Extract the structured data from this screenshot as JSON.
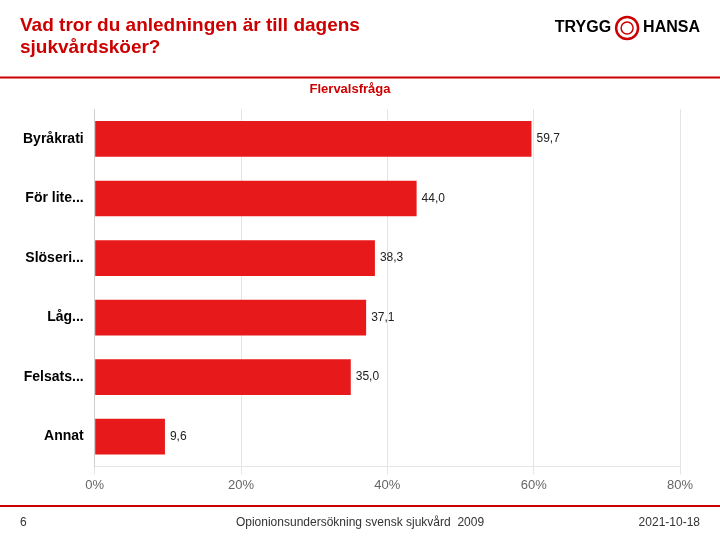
{
  "chart_data": {
    "type": "bar",
    "orientation": "horizontal",
    "title": [
      "Vad tror du anledningen är till dagens",
      "sjukvårdsköer?"
    ],
    "subtitle": "Flervalsfråga",
    "annotations": [
      "TRYGG",
      "HANSA",
      "6",
      "Opionionsundersökning svensk sjukvård  2009",
      "2021-10-18"
    ],
    "categories": [
      "Annat",
      "Felsats...",
      "Låg...",
      "Slöseri...",
      "För lite...",
      "Byråkrati"
    ],
    "values": [
      9.6,
      35.0,
      37.1,
      38.3,
      44.0,
      59.7
    ],
    "value_labels": [
      "9,6",
      "35,0",
      "37,1",
      "38,3",
      "44,0",
      "59,7"
    ],
    "data_labels": true,
    "color": "#e8191a",
    "xlim": [
      0,
      80
    ],
    "xticks": [
      {
        "value": 0,
        "label": "0%"
      },
      {
        "value": 20,
        "label": "20%"
      },
      {
        "value": 40,
        "label": "40%"
      },
      {
        "value": 60,
        "label": "60%"
      },
      {
        "value": 80,
        "label": "80%"
      }
    ],
    "grid": true
  }
}
